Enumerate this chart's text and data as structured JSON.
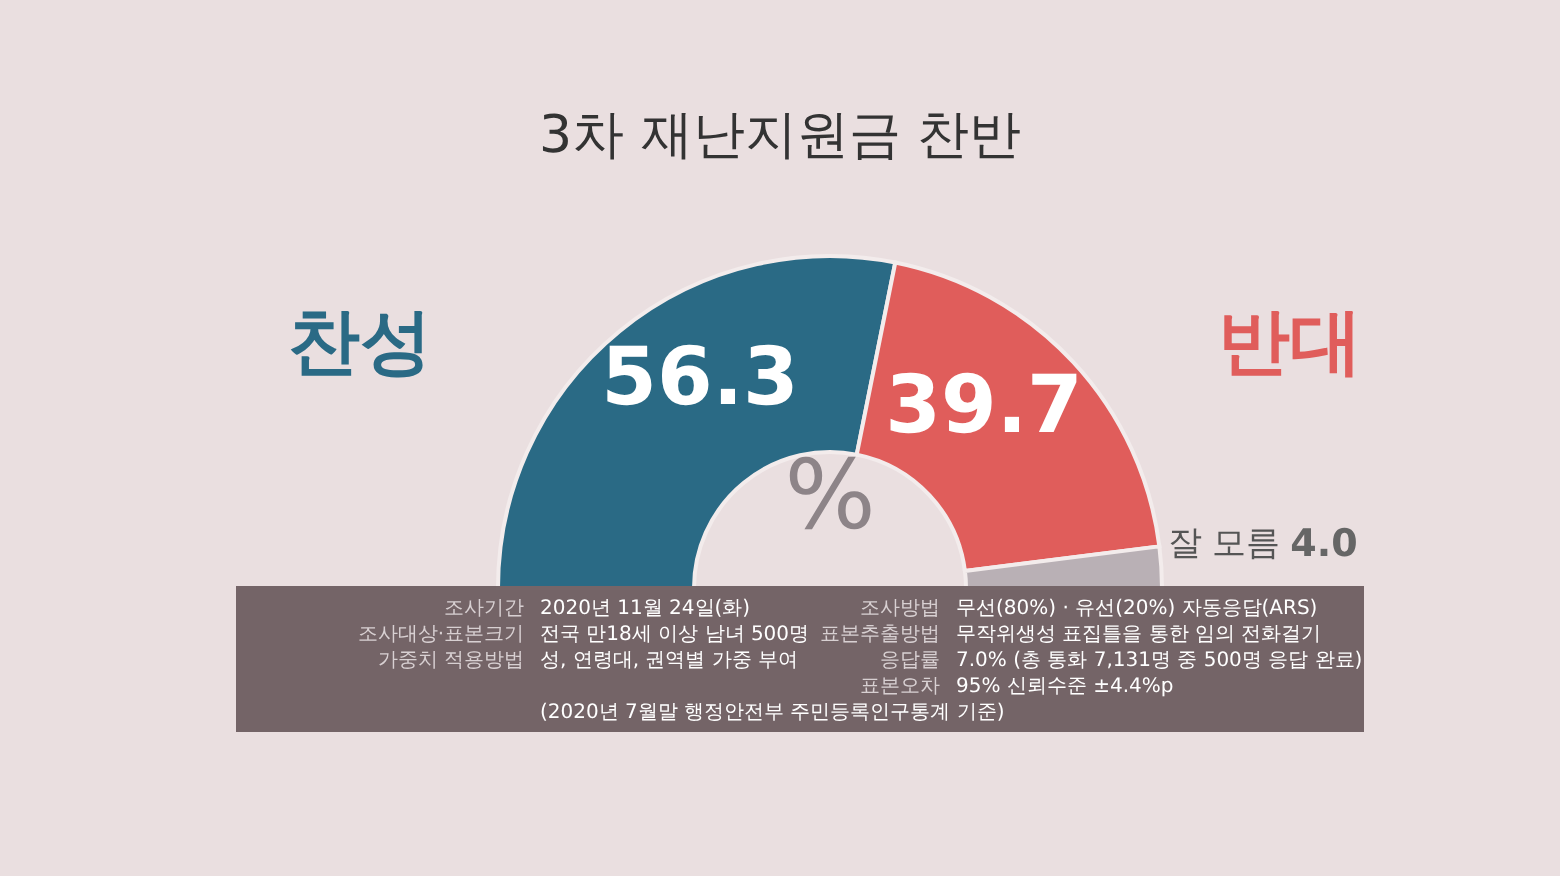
{
  "chart_data": {
    "type": "donut",
    "title": "3차 재난지원금 찬반",
    "categories": [
      "찬성",
      "반대",
      "잘 모름"
    ],
    "values": [
      56.3,
      39.7,
      4.0
    ],
    "colors": [
      "#2a6a85",
      "#e05d5b",
      "#b9b0b5"
    ],
    "value_labels": [
      "56.3",
      "39.7",
      "4.0"
    ],
    "annotations": [
      "%",
      "조사기간",
      "2020년 11월 24일(화)",
      "조사대상·표본크기",
      "전국 만18세 이상 남녀 500명",
      "가중치 적용방법",
      "성, 연령대, 권역별 가중 부여",
      "(2020년 7월말 행정안전부 주민등록인구통계 기준)",
      "조사방법",
      "무선(80%) · 유선(20%) 자동응답(ARS)",
      "표본추출방법",
      "무작위생성 표집틀을 통한 임의 전화걸기",
      "응답률",
      "7.0% (총 통화 7,131명 중 500명 응답 완료)",
      "표본오차",
      "95% 신뢰수준 ±4.4%p"
    ]
  }
}
